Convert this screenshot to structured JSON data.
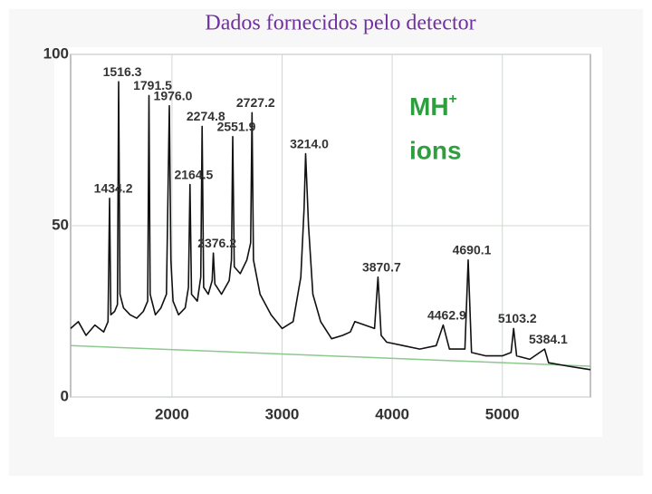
{
  "chart_data": {
    "type": "line",
    "title": "Dados fornecidos pelo detector",
    "x": [
      1080,
      1150,
      1220,
      1300,
      1380,
      1420,
      1434,
      1445,
      1480,
      1505,
      1516,
      1528,
      1560,
      1620,
      1680,
      1740,
      1780,
      1791,
      1802,
      1850,
      1900,
      1950,
      1976,
      1990,
      2010,
      2060,
      2120,
      2150,
      2164,
      2178,
      2230,
      2262,
      2274,
      2288,
      2330,
      2365,
      2376,
      2390,
      2450,
      2520,
      2540,
      2552,
      2566,
      2620,
      2680,
      2715,
      2727,
      2740,
      2800,
      2900,
      3000,
      3100,
      3170,
      3200,
      3214,
      3240,
      3280,
      3350,
      3450,
      3550,
      3620,
      3660,
      3840,
      3871,
      3900,
      3950,
      4100,
      4250,
      4400,
      4463,
      4520,
      4660,
      4690,
      4720,
      4850,
      5000,
      5080,
      5103,
      5130,
      5250,
      5384,
      5420,
      5600,
      5800
    ],
    "values": [
      20,
      22,
      18,
      21,
      19,
      22,
      58,
      24,
      25,
      27,
      92,
      30,
      26,
      24,
      23,
      25,
      28,
      88,
      30,
      24,
      26,
      30,
      85,
      40,
      28,
      24,
      26,
      32,
      62,
      30,
      28,
      35,
      79,
      32,
      30,
      34,
      42,
      33,
      30,
      34,
      40,
      76,
      38,
      36,
      40,
      45,
      83,
      40,
      30,
      24,
      20,
      22,
      35,
      55,
      71,
      50,
      30,
      22,
      17,
      18,
      19,
      22,
      20,
      35,
      18,
      16,
      15,
      14,
      15,
      21,
      14,
      14,
      40,
      13,
      12,
      12,
      13,
      20,
      12,
      11,
      14,
      10,
      9,
      8
    ],
    "color": "#111111",
    "baseline": {
      "x": [
        1080,
        5800
      ],
      "values": [
        15,
        9
      ],
      "color": "#8cc98c"
    },
    "xlim": [
      1080,
      5800
    ],
    "ylim": [
      0,
      100
    ],
    "xticks": [
      2000,
      3000,
      4000,
      5000
    ],
    "yticks": [
      0,
      50,
      100
    ],
    "grid": true,
    "annotations": [
      {
        "x": 1434.2,
        "y": 58,
        "label": "1434.2"
      },
      {
        "x": 1516.3,
        "y": 92,
        "label": "1516.3"
      },
      {
        "x": 1791.5,
        "y": 88,
        "label": "1791.5"
      },
      {
        "x": 1976.0,
        "y": 85,
        "label": "1976.0"
      },
      {
        "x": 2164.5,
        "y": 62,
        "label": "2164.5"
      },
      {
        "x": 2274.8,
        "y": 79,
        "label": "2274.8"
      },
      {
        "x": 2376.2,
        "y": 42,
        "label": "2376.2"
      },
      {
        "x": 2551.9,
        "y": 76,
        "label": "2551.9"
      },
      {
        "x": 2727.2,
        "y": 83,
        "label": "2727.2"
      },
      {
        "x": 3214.0,
        "y": 71,
        "label": "3214.0"
      },
      {
        "x": 3870.7,
        "y": 35,
        "label": "3870.7"
      },
      {
        "x": 4462.9,
        "y": 21,
        "label": "4462.9"
      },
      {
        "x": 4690.1,
        "y": 40,
        "label": "4690.1"
      },
      {
        "x": 5103.2,
        "y": 20,
        "label": "5103.2"
      },
      {
        "x": 5384.1,
        "y": 14,
        "label": "5384.1"
      }
    ],
    "ion_label": {
      "main": "MH",
      "sup": "+",
      "line2": "ions",
      "color": "#2e9e3e"
    }
  }
}
